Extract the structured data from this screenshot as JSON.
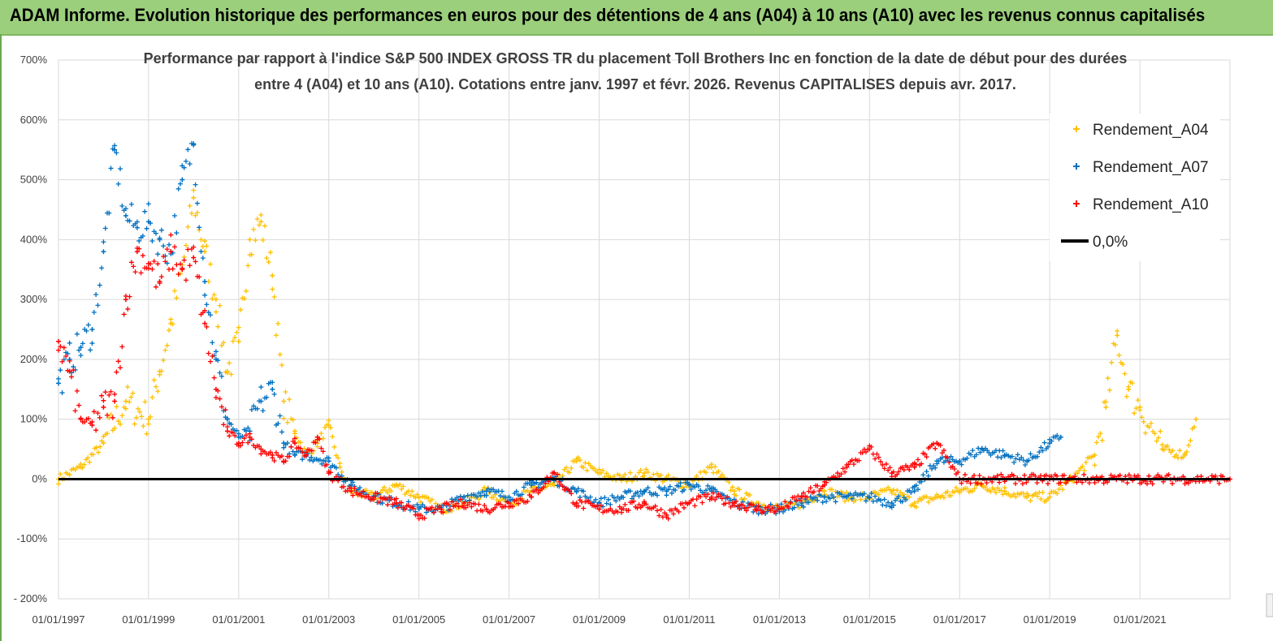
{
  "header": {
    "title": "ADAM Informe. Evolution historique des performances en euros pour des détentions de 4 ans (A04) à 10 ans (A10) avec les revenus connus capitalisés"
  },
  "colors": {
    "title_bg": "#9BCF7C",
    "a04": "#FFC000",
    "a07": "#0070C0",
    "a10": "#FF0000",
    "zero": "#000000"
  },
  "chart_data": {
    "type": "scatter",
    "title_line1": "Performance par rapport à l'indice S&P 500 INDEX GROSS TR  du placement Toll Brothers Inc en fonction de la date de début pour des durées",
    "title_line2": "entre 4 (A04) et 10 ans (A10).  Cotations entre janv. 1997 et févr. 2026. Revenus CAPITALISES depuis avr. 2017.",
    "xlabel": "",
    "ylabel": "",
    "x_range": [
      "1997-01-01",
      "2023-01-01"
    ],
    "ylim": [
      -200,
      700
    ],
    "y_ticks": [
      "- 200%",
      "-100%",
      "0%",
      "100%",
      "200%",
      "300%",
      "400%",
      "500%",
      "600%",
      "700%"
    ],
    "x_ticks": [
      "01/01/1997",
      "01/01/1999",
      "01/01/2001",
      "01/01/2003",
      "01/01/2005",
      "01/01/2007",
      "01/01/2009",
      "01/01/2011",
      "01/01/2013",
      "01/01/2015",
      "01/01/2017",
      "01/01/2019",
      "01/01/2021"
    ],
    "grid": true,
    "legend_position": "top-right",
    "legend": [
      "Rendement_A04",
      "Rendement_A07",
      "Rendement_A10",
      "0,0%"
    ],
    "series": [
      {
        "name": "Rendement_A04",
        "x": [
          "1997-01",
          "1997-07",
          "1998-01",
          "1998-07",
          "1999-01",
          "1999-04",
          "1999-07",
          "1999-10",
          "2000-01",
          "2000-04",
          "2000-07",
          "2000-10",
          "2001-01",
          "2001-04",
          "2001-07",
          "2001-10",
          "2002-01",
          "2002-04",
          "2002-07",
          "2002-10",
          "2003-01",
          "2003-04",
          "2003-07",
          "2004-01",
          "2004-07",
          "2005-01",
          "2005-07",
          "2006-01",
          "2006-07",
          "2007-01",
          "2007-07",
          "2008-01",
          "2008-07",
          "2009-01",
          "2009-07",
          "2010-01",
          "2010-07",
          "2011-01",
          "2011-07",
          "2012-01",
          "2012-07",
          "2013-01",
          "2013-07",
          "2014-01",
          "2014-07",
          "2015-01",
          "2015-07",
          "2016-01",
          "2016-07",
          "2017-01",
          "2017-07",
          "2018-01",
          "2018-07",
          "2019-01",
          "2019-07",
          "2020-01",
          "2020-04",
          "2020-07",
          "2020-10",
          "2021-01",
          "2021-07",
          "2022-01",
          "2022-04"
        ],
        "values": [
          0,
          20,
          60,
          130,
          100,
          180,
          260,
          350,
          470,
          380,
          300,
          180,
          230,
          400,
          430,
          340,
          130,
          80,
          40,
          60,
          90,
          20,
          -20,
          -30,
          -10,
          -30,
          -50,
          -40,
          -20,
          -40,
          -20,
          -10,
          30,
          10,
          0,
          10,
          0,
          -10,
          20,
          -20,
          -40,
          -50,
          -40,
          -20,
          -30,
          -30,
          -20,
          -40,
          -30,
          -20,
          -10,
          -20,
          -30,
          -30,
          0,
          40,
          120,
          240,
          150,
          120,
          50,
          40,
          100
        ]
      },
      {
        "name": "Rendement_A07",
        "x": [
          "1997-01",
          "1997-04",
          "1997-07",
          "1997-10",
          "1998-01",
          "1998-04",
          "1998-07",
          "1998-10",
          "1999-01",
          "1999-04",
          "1999-07",
          "1999-10",
          "2000-01",
          "2000-04",
          "2000-07",
          "2000-10",
          "2001-01",
          "2001-04",
          "2001-07",
          "2001-10",
          "2002-01",
          "2002-04",
          "2002-07",
          "2003-01",
          "2003-07",
          "2004-01",
          "2004-07",
          "2005-01",
          "2005-07",
          "2006-01",
          "2006-07",
          "2007-01",
          "2007-07",
          "2008-01",
          "2008-07",
          "2009-01",
          "2009-07",
          "2010-01",
          "2010-07",
          "2011-01",
          "2011-07",
          "2012-01",
          "2012-07",
          "2013-01",
          "2013-07",
          "2014-01",
          "2014-07",
          "2015-01",
          "2015-07",
          "2016-01",
          "2016-07",
          "2017-01",
          "2017-07",
          "2018-01",
          "2018-07",
          "2019-01",
          "2019-04"
        ],
        "values": [
          160,
          200,
          220,
          250,
          380,
          550,
          440,
          420,
          430,
          400,
          380,
          500,
          560,
          330,
          200,
          100,
          70,
          80,
          130,
          150,
          60,
          40,
          40,
          30,
          -10,
          -30,
          -40,
          -50,
          -50,
          -30,
          -20,
          -30,
          -10,
          0,
          -20,
          -40,
          -30,
          -20,
          -20,
          -10,
          -20,
          -40,
          -50,
          -50,
          -40,
          -30,
          -30,
          -30,
          -40,
          -20,
          30,
          30,
          50,
          40,
          30,
          60,
          70
        ]
      },
      {
        "name": "Rendement_A10",
        "x": [
          "1997-01",
          "1997-04",
          "1997-07",
          "1997-10",
          "1998-01",
          "1998-04",
          "1998-07",
          "1998-10",
          "1999-01",
          "1999-04",
          "1999-07",
          "1999-10",
          "2000-01",
          "2000-04",
          "2000-07",
          "2000-10",
          "2001-01",
          "2001-04",
          "2001-07",
          "2001-10",
          "2002-01",
          "2002-04",
          "2002-07",
          "2002-10",
          "2003-01",
          "2003-07",
          "2004-01",
          "2004-07",
          "2005-01",
          "2005-07",
          "2006-01",
          "2006-07",
          "2007-01",
          "2007-07",
          "2008-01",
          "2008-07",
          "2009-01",
          "2009-07",
          "2010-01",
          "2010-07",
          "2011-01",
          "2011-07",
          "2012-01",
          "2012-07",
          "2013-01",
          "2013-07",
          "2014-01",
          "2014-07",
          "2015-01",
          "2015-07",
          "2016-01",
          "2016-07",
          "2017-01",
          "2018-01",
          "2019-01",
          "2020-01",
          "2021-01",
          "2022-01",
          "2023-01"
        ],
        "values": [
          230,
          180,
          100,
          90,
          120,
          130,
          300,
          380,
          360,
          330,
          380,
          350,
          370,
          260,
          150,
          80,
          60,
          70,
          50,
          40,
          30,
          60,
          40,
          70,
          10,
          -20,
          -30,
          -40,
          -60,
          -50,
          -40,
          -50,
          -40,
          -30,
          10,
          -40,
          -50,
          -50,
          -40,
          -60,
          -40,
          -30,
          -40,
          -50,
          -50,
          -30,
          -10,
          20,
          50,
          10,
          20,
          60,
          0,
          0,
          0,
          0,
          0,
          0,
          0
        ]
      }
    ],
    "zero_line": {
      "name": "0,0%",
      "y": 0
    }
  }
}
